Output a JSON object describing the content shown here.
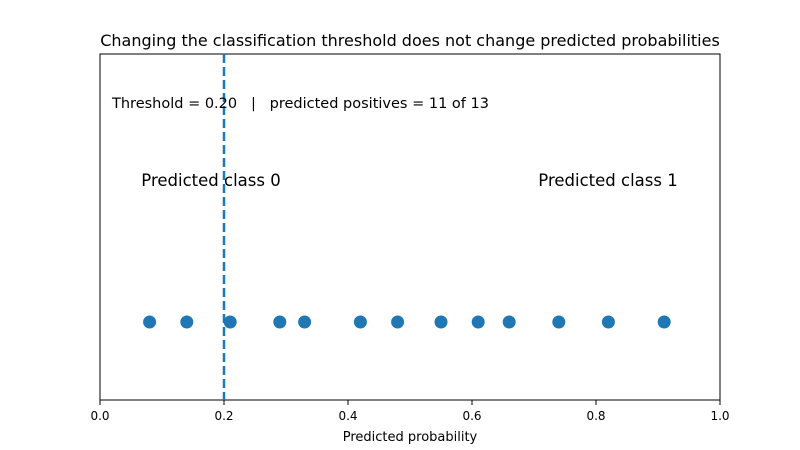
{
  "chart_data": {
    "type": "scatter",
    "title": "Changing the classification threshold does not change predicted probabilities",
    "xlabel": "Predicted probability",
    "ylabel": "",
    "xlim": [
      0.0,
      1.0
    ],
    "x_ticks": [
      0.0,
      0.2,
      0.4,
      0.6,
      0.8,
      1.0
    ],
    "x_tick_labels": [
      "0.0",
      "0.2",
      "0.4",
      "0.6",
      "0.8",
      "1.0"
    ],
    "y_ticks_visible": false,
    "grid": false,
    "points": [
      0.08,
      0.14,
      0.21,
      0.29,
      0.33,
      0.42,
      0.48,
      0.55,
      0.61,
      0.66,
      0.74,
      0.82,
      0.91
    ],
    "point_color": "#1f77b4",
    "threshold": {
      "value": 0.2,
      "color": "#1f77b4",
      "style": "dashed"
    },
    "annotation": "Threshold = 0.20   |   predicted positives = 11 of 13",
    "region_labels": {
      "left": "Predicted class 0",
      "right": "Predicted class 1"
    }
  }
}
